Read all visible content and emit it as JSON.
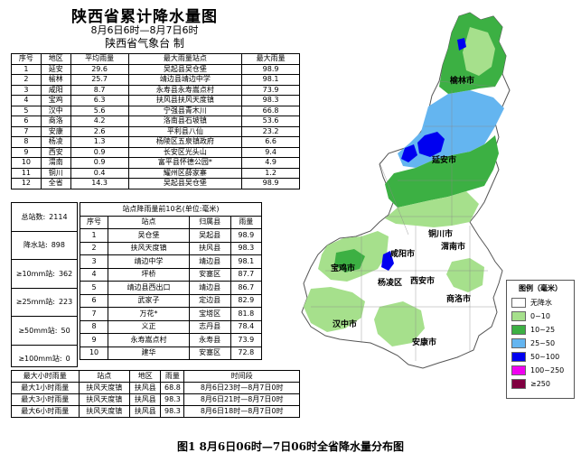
{
  "title": "陕西省累计降水量图",
  "period": "8月6日6时—8月7日6时",
  "issuer": "陕西省气象台  制",
  "rank_table": {
    "headers": [
      "序号",
      "地区",
      "平均雨量",
      "最大雨量站点",
      "最大雨量"
    ],
    "rows": [
      [
        "1",
        "延安",
        "29.6",
        "吴起县吴仓堡",
        "98.9"
      ],
      [
        "2",
        "榆林",
        "25.7",
        "靖边县靖边中学",
        "98.1"
      ],
      [
        "3",
        "咸阳",
        "8.7",
        "永寿县永寿嵩点村",
        "73.9"
      ],
      [
        "4",
        "宝鸡",
        "6.3",
        "扶风县扶风天度镇",
        "98.3"
      ],
      [
        "5",
        "汉中",
        "5.6",
        "宁强县青木川",
        "66.8"
      ],
      [
        "6",
        "商洛",
        "4.2",
        "洛南县石坡镇",
        "53.6"
      ],
      [
        "7",
        "安康",
        "2.6",
        "平利县八仙",
        "23.2"
      ],
      [
        "8",
        "杨凌",
        "1.3",
        "杨陵区五泉镇政府",
        "6.6"
      ],
      [
        "9",
        "西安",
        "0.9",
        "长安区光头山",
        "9.4"
      ],
      [
        "10",
        "渭南",
        "0.9",
        "富平县怀德公园*",
        "4.9"
      ],
      [
        "11",
        "铜川",
        "0.4",
        "耀州区薛家寨",
        "1.2"
      ],
      [
        "12",
        "全省",
        "14.3",
        "吴起县吴仓堡",
        "98.9"
      ]
    ]
  },
  "summary": [
    {
      "label": "总站数:",
      "value": "2114"
    },
    {
      "label": "降水站:",
      "value": "898"
    },
    {
      "label": "≥10mm站:",
      "value": "362"
    },
    {
      "label": "≥25mm站:",
      "value": "223"
    },
    {
      "label": "≥50mm站:",
      "value": "50"
    },
    {
      "label": "≥100mm站:",
      "value": "0"
    }
  ],
  "top10": {
    "caption": "站点降雨量前10名(单位:毫米)",
    "headers": [
      "序号",
      "站点",
      "归属县",
      "雨量"
    ],
    "rows": [
      [
        "1",
        "吴仓堡",
        "吴起县",
        "98.9"
      ],
      [
        "2",
        "扶风天度镇",
        "扶风县",
        "98.3"
      ],
      [
        "3",
        "靖边中学",
        "靖边县",
        "98.1"
      ],
      [
        "4",
        "坪桥",
        "安塞区",
        "87.7"
      ],
      [
        "5",
        "靖边县西出口",
        "靖边县",
        "86.7"
      ],
      [
        "6",
        "武家子",
        "定边县",
        "82.9"
      ],
      [
        "7",
        "万花*",
        "宝塔区",
        "81.8"
      ],
      [
        "8",
        "义正",
        "志丹县",
        "78.4"
      ],
      [
        "9",
        "永寿嵩点村",
        "永寿县",
        "73.9"
      ],
      [
        "10",
        "建华",
        "安塞区",
        "72.8"
      ]
    ]
  },
  "hour_table": {
    "headers": [
      "最大小时雨量",
      "站点",
      "地区",
      "雨量",
      "时间段"
    ],
    "rows": [
      [
        "最大1小时雨量",
        "扶风天度镇",
        "扶风县",
        "68.8",
        "8月6日23时—8月7日0时"
      ],
      [
        "最大3小时雨量",
        "扶风天度镇",
        "扶风县",
        "98.3",
        "8月6日21时—8月7日0时"
      ],
      [
        "最大6小时雨量",
        "扶风天度镇",
        "扶风县",
        "98.3",
        "8月6日18时—8月7日0时"
      ]
    ]
  },
  "legend": {
    "title": "图例（毫米）",
    "items": [
      {
        "label": "无降水",
        "color": "#ffffff"
      },
      {
        "label": "0~10",
        "color": "#a6e08c"
      },
      {
        "label": "10~25",
        "color": "#3cb043"
      },
      {
        "label": "25~50",
        "color": "#64b5f0"
      },
      {
        "label": "50~100",
        "color": "#0000f0"
      },
      {
        "label": "100~250",
        "color": "#f000f0"
      },
      {
        "label": "≥250",
        "color": "#800040"
      }
    ]
  },
  "cities": [
    "榆林市",
    "延安市",
    "铜川市",
    "渭南市",
    "咸阳市",
    "宝鸡市",
    "西安市",
    "杨凌区",
    "汉中市",
    "商洛市",
    "安康市"
  ],
  "caption": "图1   8月6日06时—7日06时全省降水量分布图"
}
